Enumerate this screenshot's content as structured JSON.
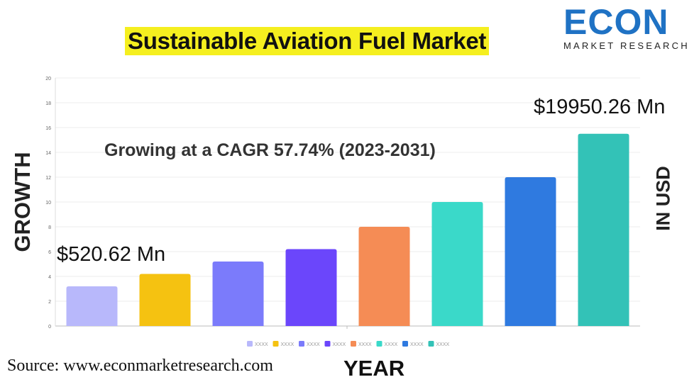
{
  "title": "Sustainable Aviation Fuel Market",
  "logo": {
    "word": "ECON",
    "subtitle": "MARKET RESEARCH"
  },
  "annotations": {
    "cagr": "Growing at a CAGR 57.74% (2023-2031)",
    "first_value": "$520.62 Mn",
    "last_value": "$19950.26 Mn"
  },
  "source": "Source: www.econmarketresearch.com",
  "chart_data": {
    "type": "bar",
    "xlabel": "YEAR",
    "ylabel": "GROWTH",
    "ylabel_right": "IN USD",
    "ylim": [
      0,
      20
    ],
    "yticks": [
      0,
      2,
      4,
      6,
      8,
      10,
      12,
      14,
      16,
      18,
      20
    ],
    "grid": true,
    "legend_position": "bottom",
    "categories": [
      "XXXX",
      "XXXX",
      "XXXX",
      "XXXX",
      "XXXX",
      "XXXX",
      "XXXX",
      "XXXX"
    ],
    "values": [
      3.2,
      4.2,
      5.2,
      6.2,
      8,
      10,
      12,
      15.5
    ],
    "colors": [
      "#b8b8fb",
      "#f5c211",
      "#7b7bfb",
      "#6b46fb",
      "#f58c55",
      "#3ad9c9",
      "#2f7ae0",
      "#33c2b7"
    ]
  }
}
